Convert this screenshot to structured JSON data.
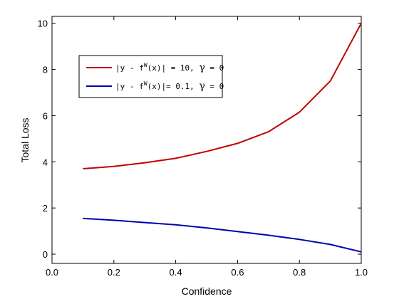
{
  "chart_data": {
    "type": "line",
    "xlabel": "Confidence",
    "ylabel": "Total Loss",
    "xlim": [
      0,
      1
    ],
    "ylim": [
      -0.4,
      10.3
    ],
    "xticks": [
      "0.0",
      "0.2",
      "0.4",
      "0.6",
      "0.8",
      "1.0"
    ],
    "yticks": [
      "0",
      "2",
      "4",
      "6",
      "8",
      "10"
    ],
    "grid": false,
    "legend_position": "top-left",
    "series": [
      {
        "name_parts": {
          "prefix": "|y - f",
          "sup": "W",
          "suffix": "(x)| = 10,  ",
          "gamma": "γ",
          "gamma_tail": " = 0"
        },
        "color": "#c00000",
        "x": [
          0.1,
          0.2,
          0.3,
          0.4,
          0.5,
          0.6,
          0.7,
          0.8,
          0.9,
          1.0
        ],
        "values": [
          3.7,
          3.8,
          3.96,
          4.15,
          4.45,
          4.8,
          5.3,
          6.15,
          7.5,
          10.0
        ]
      },
      {
        "name_parts": {
          "prefix": "|y - f",
          "sup": "W",
          "suffix": "(x)|= 0.1,  ",
          "gamma": "γ",
          "gamma_tail": " = 0"
        },
        "color": "#0000b0",
        "x": [
          0.1,
          0.2,
          0.3,
          0.4,
          0.5,
          0.6,
          0.7,
          0.8,
          0.9,
          1.0
        ],
        "values": [
          1.55,
          1.47,
          1.37,
          1.27,
          1.14,
          0.98,
          0.82,
          0.64,
          0.42,
          0.1
        ]
      }
    ]
  }
}
